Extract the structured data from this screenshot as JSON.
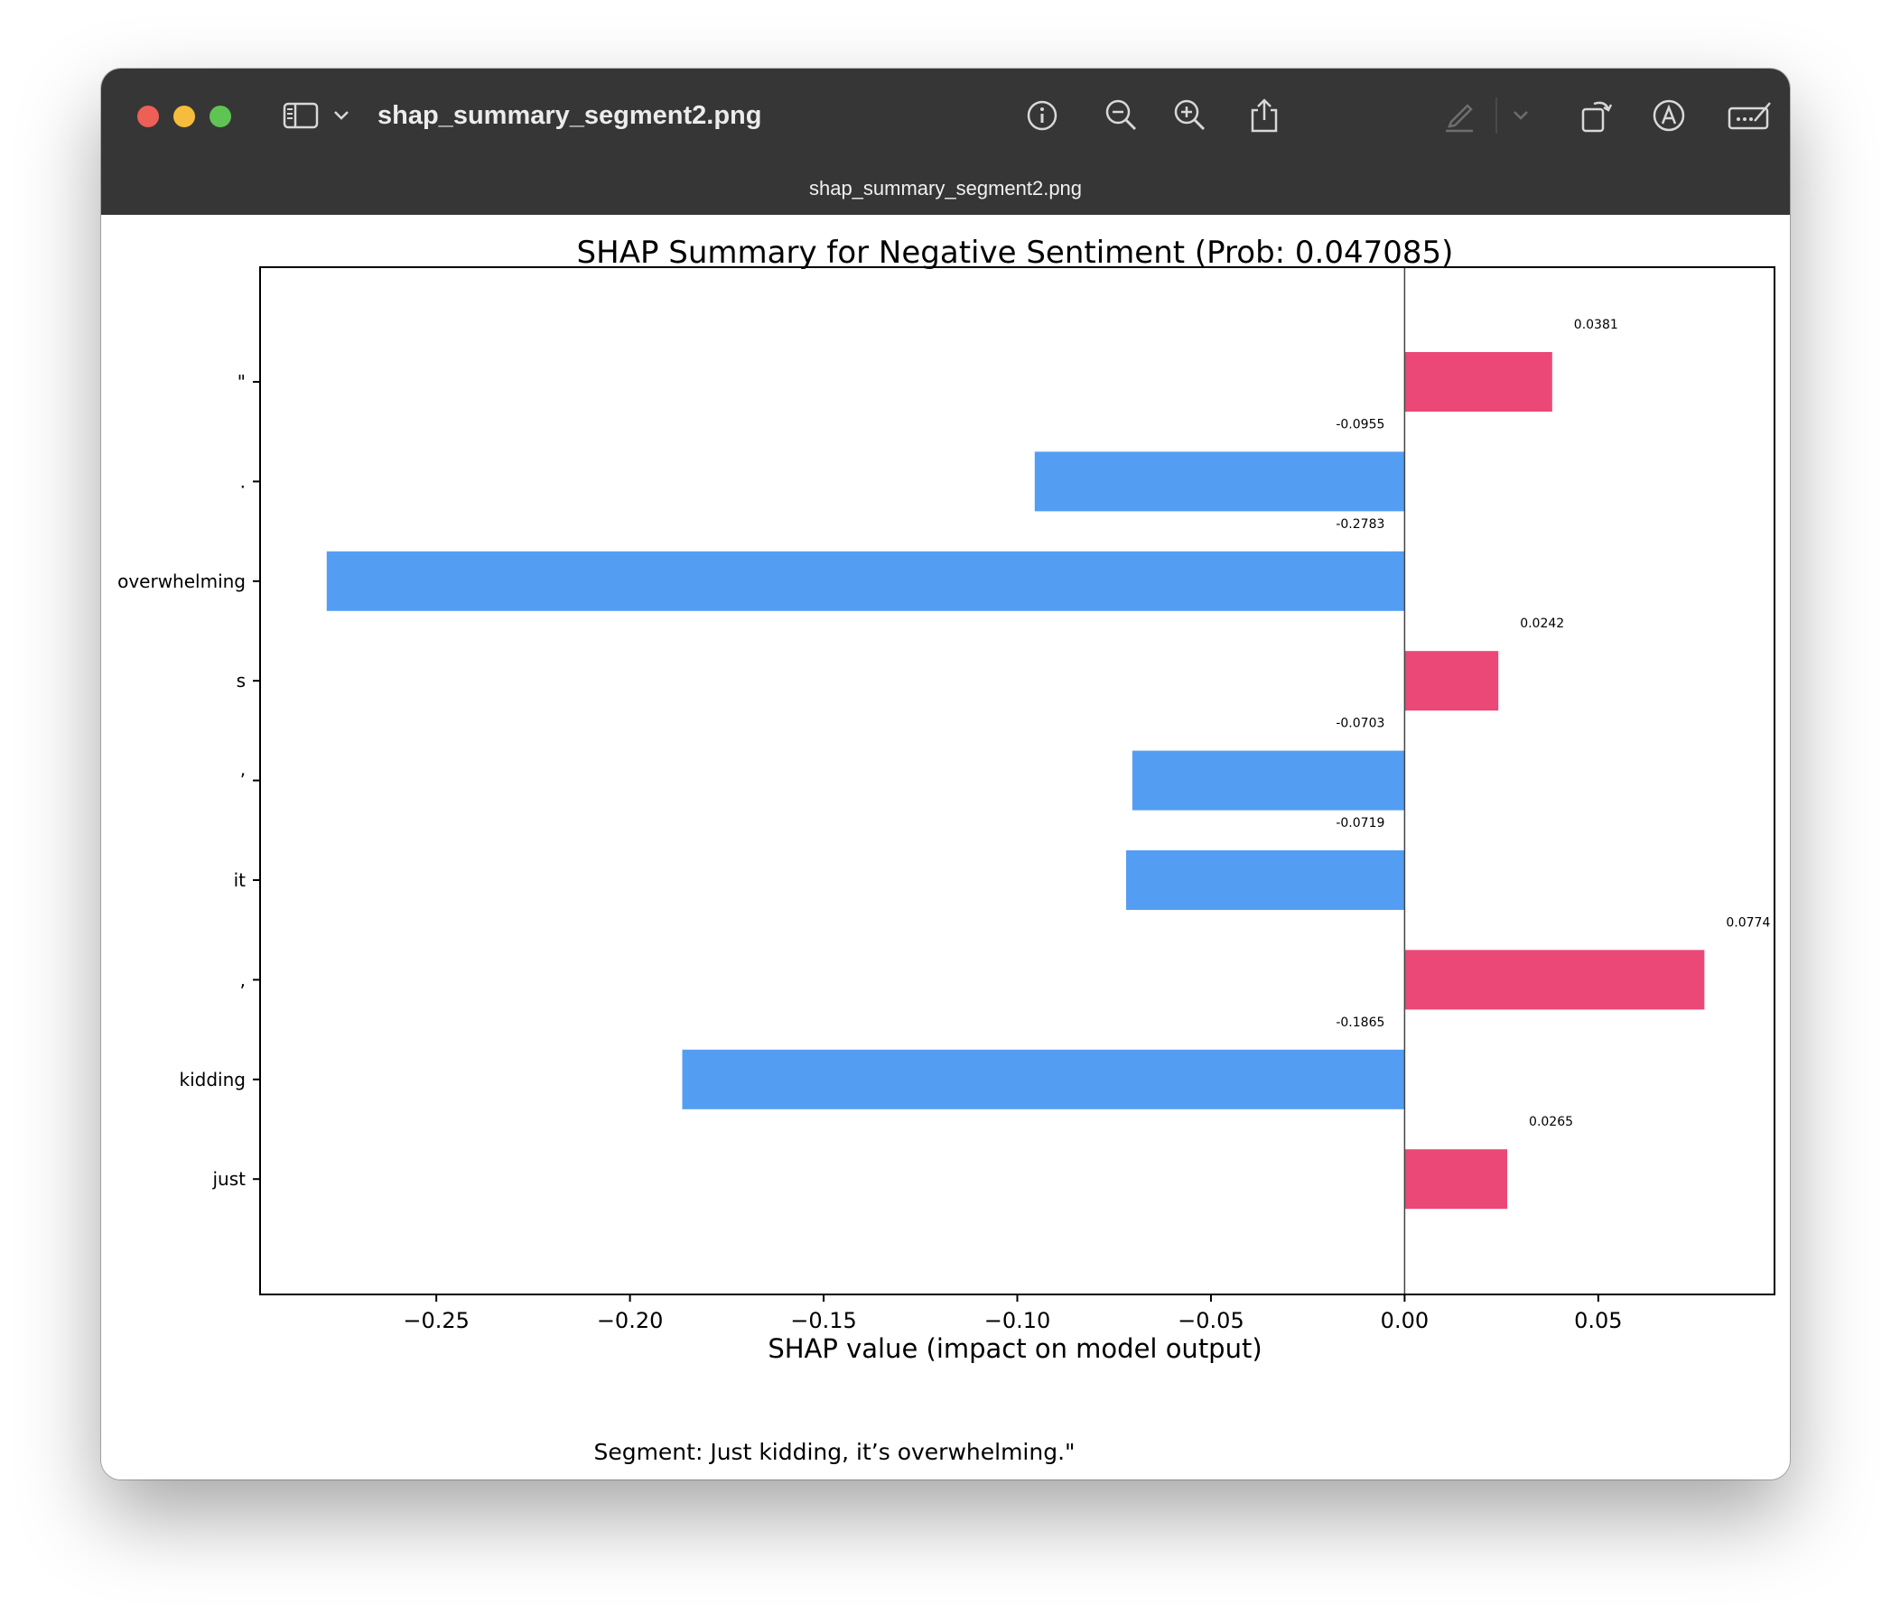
{
  "window": {
    "title": "shap_summary_segment2.png",
    "tab_title": "shap_summary_segment2.png"
  },
  "toolbar": {
    "icons": [
      "sidebar-icon",
      "chevron-down-icon",
      "info-icon",
      "zoom-out-icon",
      "zoom-in-icon",
      "share-icon",
      "highlight-pen-icon",
      "chevron-down-icon",
      "rotate-icon",
      "markup-icon",
      "signature-icon",
      "search-icon"
    ]
  },
  "colors": {
    "positive": "#eb4877",
    "negative": "#539ef3",
    "titlebar": "#363636"
  },
  "chart_data": {
    "type": "bar",
    "orientation": "horizontal",
    "title": "SHAP Summary for Negative Sentiment (Prob: 0.047085)",
    "xlabel": "SHAP value (impact on model output)",
    "ylabel": "",
    "categories": [
      "\"",
      ".",
      "overwhelming",
      "s",
      "’",
      "it",
      ",",
      "kidding",
      "just"
    ],
    "values": [
      0.0381,
      -0.0955,
      -0.2783,
      0.0242,
      -0.0703,
      -0.0719,
      0.0774,
      -0.1865,
      0.0265
    ],
    "value_labels": [
      "0.0381",
      "-0.0955",
      "-0.2783",
      "0.0242",
      "-0.0703",
      "-0.0719",
      "0.0774",
      "-0.1865",
      "0.0265"
    ],
    "xlim": [
      -0.2955,
      0.0955
    ],
    "xticks": [
      -0.25,
      -0.2,
      -0.15,
      -0.1,
      -0.05,
      0.0,
      0.05
    ],
    "xtick_labels": [
      "−0.25",
      "−0.20",
      "−0.15",
      "−0.10",
      "−0.05",
      "0.00",
      "0.05"
    ],
    "grid": false,
    "zero_line": true,
    "caption": "Segment: Just kidding, it’s overwhelming.\""
  }
}
